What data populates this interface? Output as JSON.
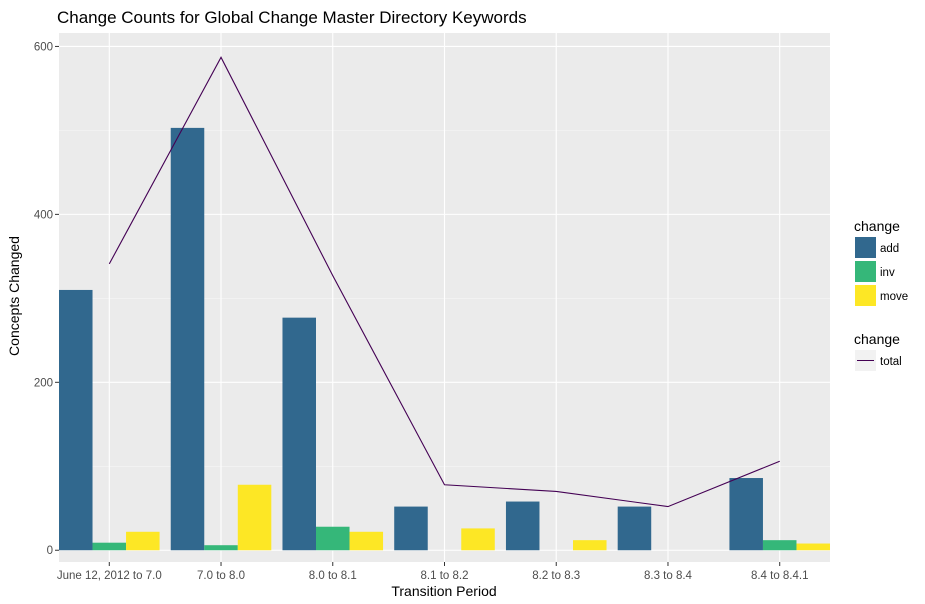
{
  "chart_data": {
    "type": "bar",
    "title": "Change Counts for Global Change Master Directory Keywords",
    "xlabel": "Transition Period",
    "ylabel": "Concepts Changed",
    "categories": [
      "June 12, 2012 to 7.0",
      "7.0 to 8.0",
      "8.0 to 8.1",
      "8.1 to 8.2",
      "8.2 to 8.3",
      "8.3 to 8.4",
      "8.4 to 8.4.1"
    ],
    "series": [
      {
        "name": "add",
        "type": "bar",
        "color": "#31688e",
        "values": [
          310,
          503,
          277,
          52,
          58,
          52,
          86
        ]
      },
      {
        "name": "inv",
        "type": "bar",
        "color": "#35b779",
        "values": [
          9,
          6,
          28,
          0,
          0,
          0,
          12
        ]
      },
      {
        "name": "move",
        "type": "bar",
        "color": "#fde725",
        "values": [
          22,
          78,
          22,
          26,
          12,
          0,
          8
        ]
      },
      {
        "name": "total",
        "type": "line",
        "color": "#440154",
        "values": [
          341,
          587,
          327,
          78,
          70,
          52,
          106
        ]
      }
    ],
    "ylim": [
      -14,
      616
    ],
    "yticks": [
      0,
      200,
      400,
      600
    ],
    "grid": true,
    "legend": {
      "placement": "right",
      "groups": [
        {
          "title": "change",
          "entries": [
            "add",
            "inv",
            "move"
          ]
        },
        {
          "title": "change",
          "entries": [
            "total"
          ]
        }
      ]
    }
  }
}
